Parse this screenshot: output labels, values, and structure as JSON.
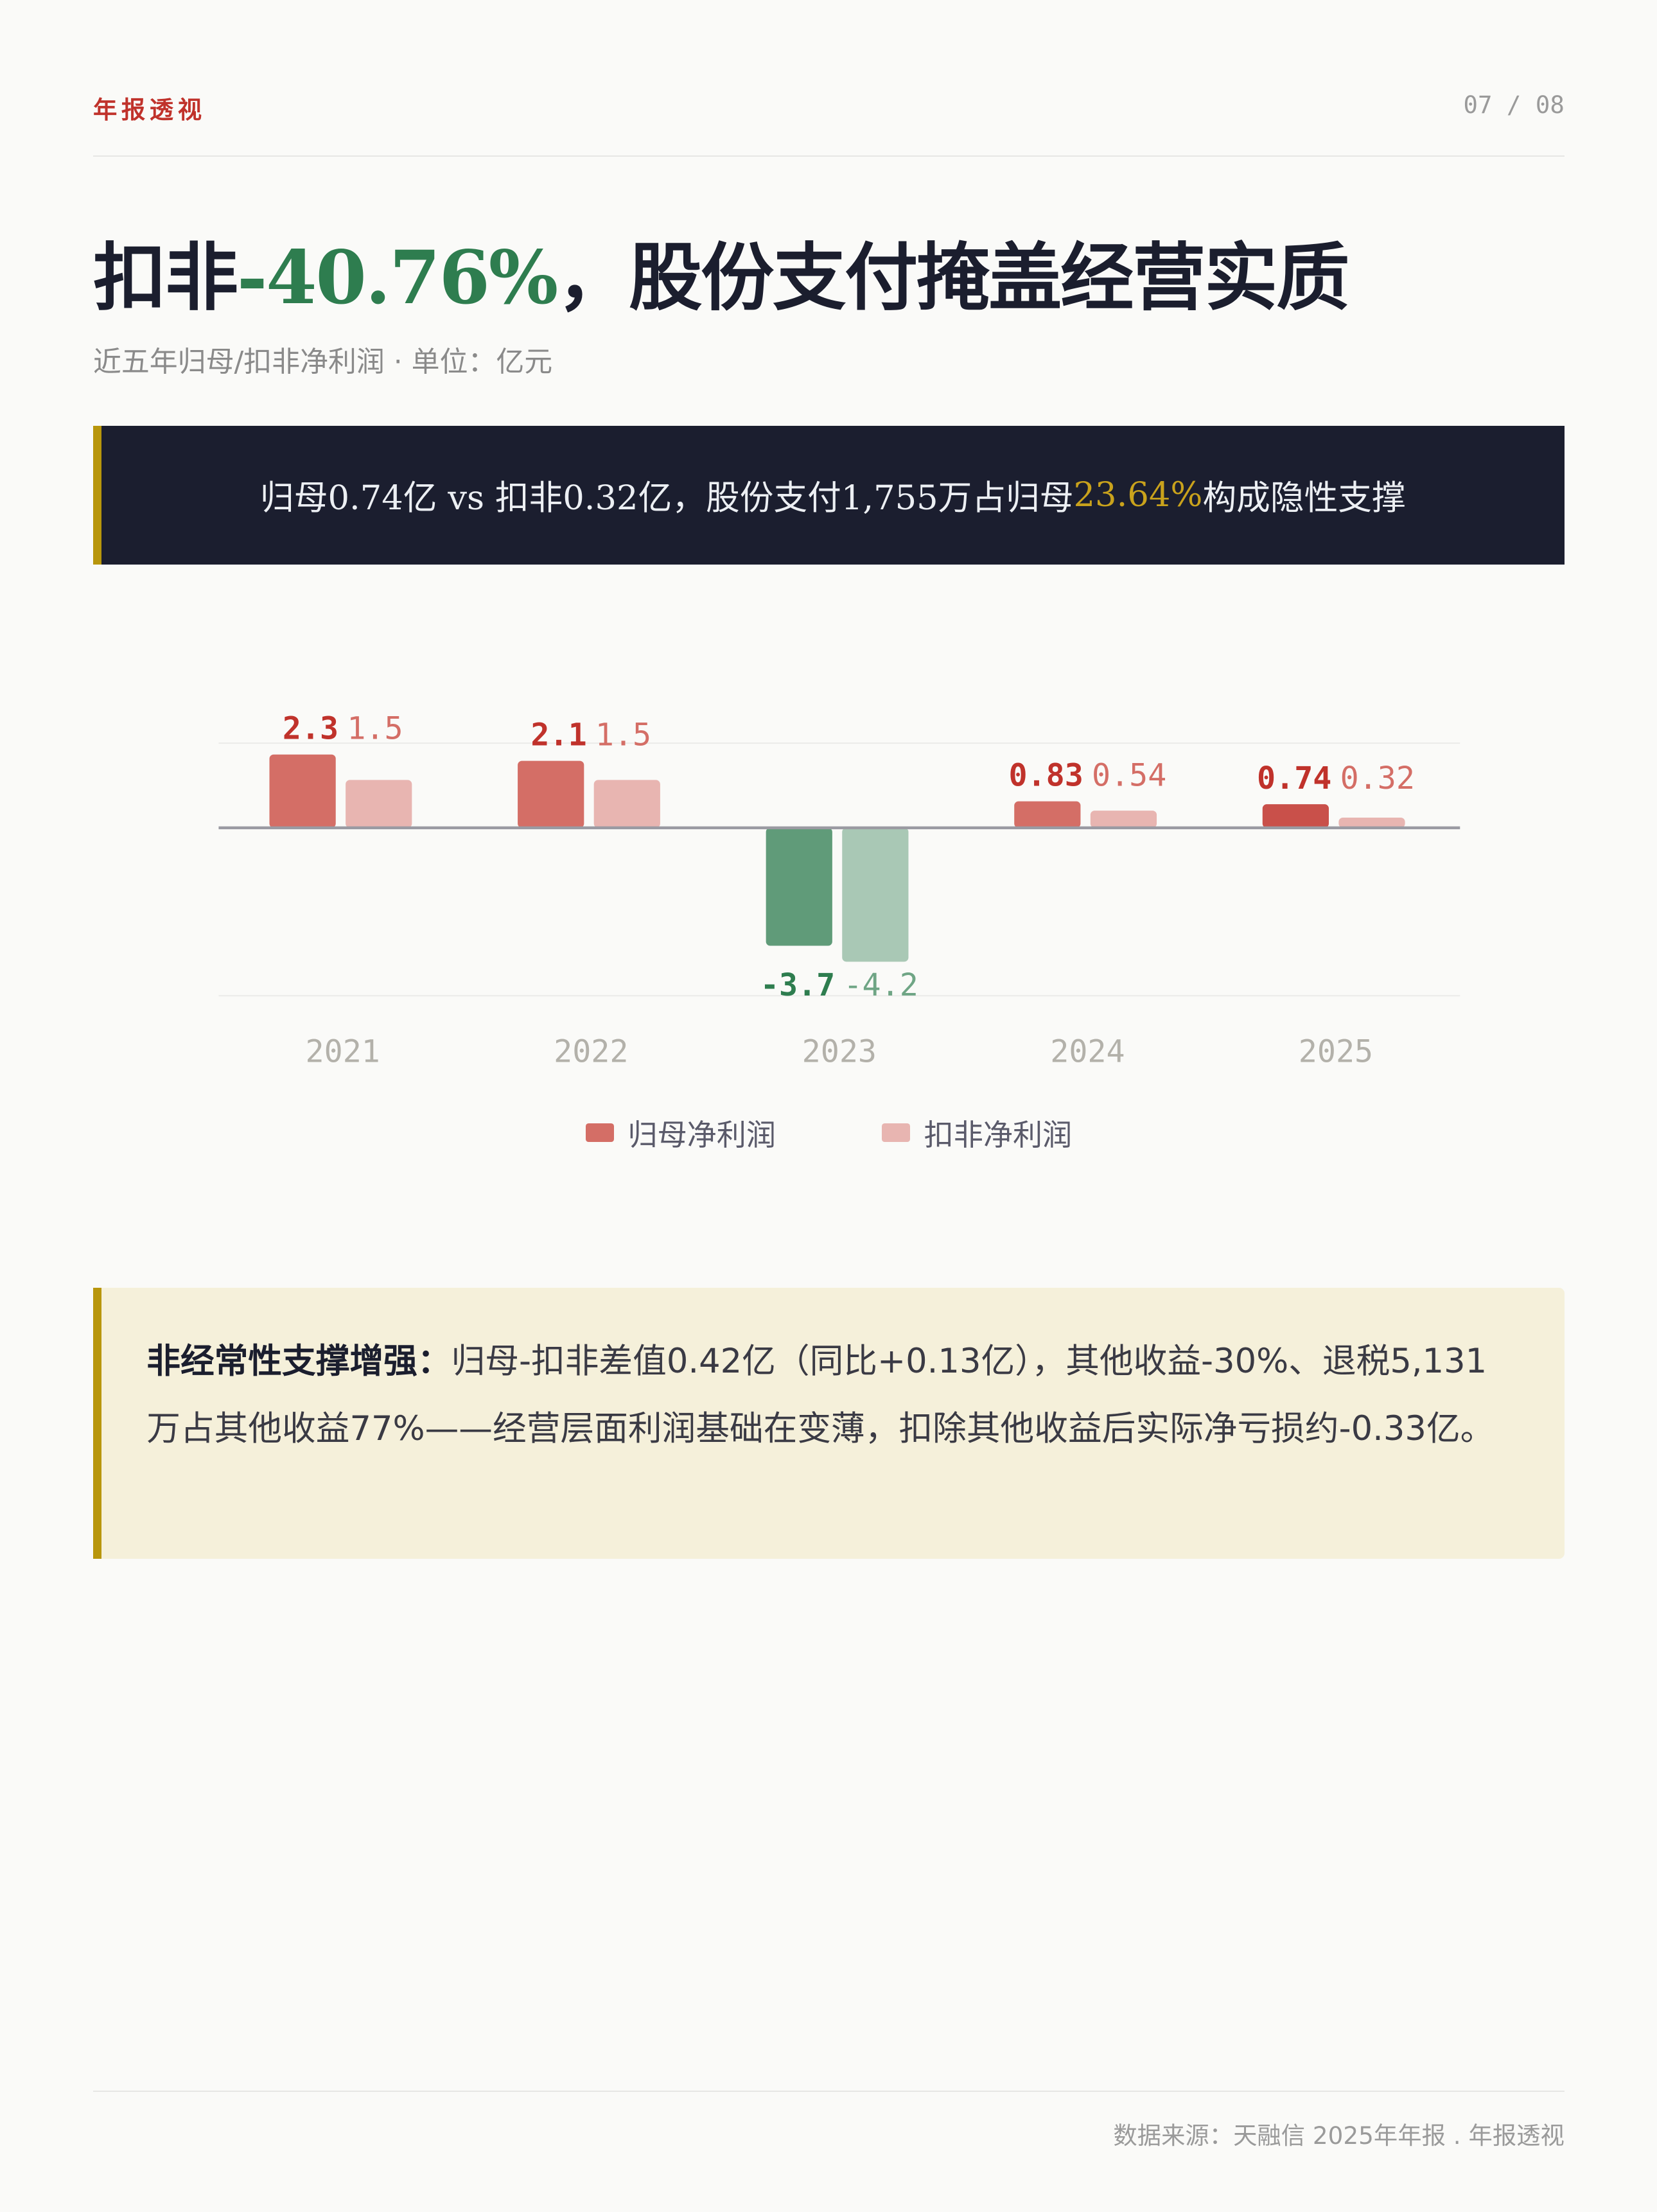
{
  "header": {
    "brand": "年报透视",
    "page": "07 / 08"
  },
  "title": {
    "prefix": "扣非",
    "highlight": "-40.76%",
    "suffix": "，股份支付掩盖经营实质"
  },
  "subtitle": "近五年归母/扣非净利润 · 单位：亿元",
  "banner": {
    "text_before": "归母0.74亿 vs 扣非0.32亿，股份支付1,755万占归母",
    "highlight": "23.64%",
    "text_after": "构成隐性支撑"
  },
  "chart_data": {
    "type": "bar",
    "categories": [
      "2021",
      "2022",
      "2023",
      "2024",
      "2025"
    ],
    "series": [
      {
        "name": "归母净利润",
        "values": [
          2.3,
          2.1,
          -3.7,
          0.83,
          0.74
        ],
        "labels": [
          "2.3",
          "2.1",
          "-3.7",
          "0.83",
          "0.74"
        ]
      },
      {
        "name": "扣非净利润",
        "values": [
          1.5,
          1.5,
          -4.2,
          0.54,
          0.32
        ],
        "labels": [
          "1.5",
          "1.5",
          "-4.2",
          "0.54",
          "0.32"
        ]
      }
    ],
    "ylim": [
      -5.3,
      2.65
    ],
    "legend": "bottom",
    "colors": {
      "positive_primary": "#d46e66",
      "positive_primary_latest": "#c9504a",
      "positive_secondary": "#e8b5b1",
      "negative_primary": "#609b79",
      "negative_secondary": "#a9c8b5",
      "label_primary": "#c0322b",
      "label_secondary": "#d46e66",
      "label_neg_primary": "#2e7d4f",
      "label_neg_secondary": "#6fa585"
    }
  },
  "note": {
    "lead": "非经常性支撑增强：",
    "body": "归母-扣非差值0.42亿（同比+0.13亿），其他收益-30%、退税5,131万占其他收益77%——经营层面利润基础在变薄，扣除其他收益后实际净亏损约-0.33亿。"
  },
  "footer": "数据来源：天融信 2025年年报 . 年报透视"
}
